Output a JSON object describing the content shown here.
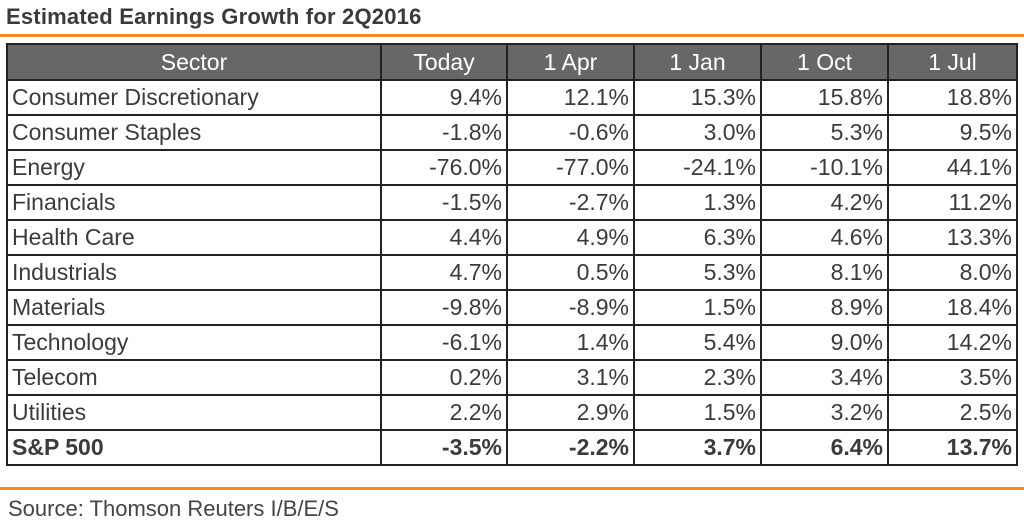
{
  "title": "Estimated Earnings Growth for  2Q2016",
  "source": "Source: Thomson Reuters I/B/E/S",
  "colors": {
    "accent": "#f28c1f",
    "header_bg": "#676767"
  },
  "chart_data": {
    "type": "table",
    "title": "Estimated Earnings Growth for  2Q2016",
    "columns": [
      "Sector",
      "Today",
      "1 Apr",
      "1 Jan",
      "1 Oct",
      "1 Jul"
    ],
    "rows": [
      [
        "Consumer Discretionary",
        "9.4%",
        "12.1%",
        "15.3%",
        "15.8%",
        "18.8%"
      ],
      [
        "Consumer Staples",
        "-1.8%",
        "-0.6%",
        "3.0%",
        "5.3%",
        "9.5%"
      ],
      [
        "Energy",
        "-76.0%",
        "-77.0%",
        "-24.1%",
        "-10.1%",
        "44.1%"
      ],
      [
        "Financials",
        "-1.5%",
        "-2.7%",
        "1.3%",
        "4.2%",
        "11.2%"
      ],
      [
        "Health Care",
        "4.4%",
        "4.9%",
        "6.3%",
        "4.6%",
        "13.3%"
      ],
      [
        "Industrials",
        "4.7%",
        "0.5%",
        "5.3%",
        "8.1%",
        "8.0%"
      ],
      [
        "Materials",
        "-9.8%",
        "-8.9%",
        "1.5%",
        "8.9%",
        "18.4%"
      ],
      [
        "Technology",
        "-6.1%",
        "1.4%",
        "5.4%",
        "9.0%",
        "14.2%"
      ],
      [
        "Telecom",
        "0.2%",
        "3.1%",
        "2.3%",
        "3.4%",
        "3.5%"
      ],
      [
        "Utilities",
        "2.2%",
        "2.9%",
        "1.5%",
        "3.2%",
        "2.5%"
      ],
      [
        "S&P 500",
        "-3.5%",
        "-2.2%",
        "3.7%",
        "6.4%",
        "13.7%"
      ]
    ]
  }
}
